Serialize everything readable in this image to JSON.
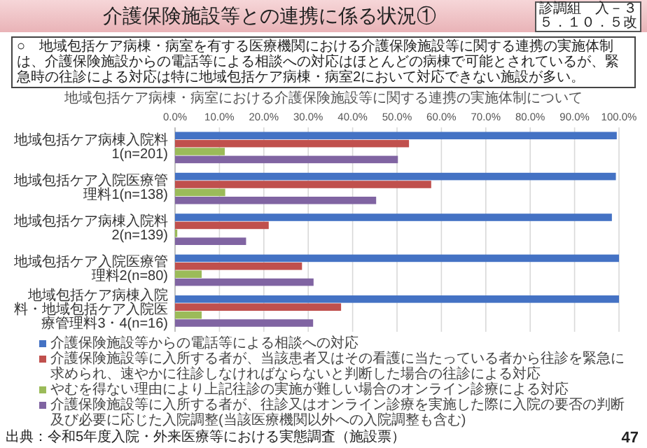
{
  "chart_data": {
    "type": "bar",
    "orientation": "horizontal",
    "title": "介護保険施設等との連携に係る状況①",
    "subtitle": "地域包括ケア病棟・病室における介護保険施設等に関する連携の実施体制について",
    "categories": [
      "地域包括ケア病棟入院料1(n=201)",
      "地域包括ケア入院医療管理料1(n=138)",
      "地域包括ケア病棟入院料2(n=139)",
      "地域包括ケア入院医療管理料2(n=80)",
      "地域包括ケア病棟入院料・地域包括ケア入院医療管理料3・4(n=16)"
    ],
    "series": [
      {
        "name": "介護保険施設等からの電話等による相談への対応",
        "color": "#4472c4",
        "values": [
          99.5,
          99.3,
          98.4,
          100,
          100
        ]
      },
      {
        "name": "介護保険施設等に入所する者が、当該患者又はその看護に当たっている者から往診を緊急に求められ、速やかに往診しなければならないと判断した場合の往診による対応",
        "color": "#c0504d",
        "values": [
          52.7,
          57.7,
          21.1,
          28.6,
          37.4
        ]
      },
      {
        "name": "やむを得ない理由により上記往診の実施が難しい場合のオンライン診療による対応",
        "color": "#9bbb59",
        "values": [
          11.2,
          11.3,
          0.5,
          6.0,
          6.0
        ]
      },
      {
        "name": "介護保険施設等に入所する者が、往診又はオンライン診療を実施した際に入院の要否の判断及び必要に応じた入院調整(当該医療機関以外への入院調整も含む)",
        "color": "#8064a2",
        "values": [
          50.2,
          45.3,
          16.0,
          31.2,
          31.1
        ]
      }
    ],
    "xlim": [
      0,
      100
    ],
    "xticks": [
      {
        "value": 0,
        "label": "0.0%"
      },
      {
        "value": 10,
        "label": "10.0%"
      },
      {
        "value": 20,
        "label": "20.0%"
      },
      {
        "value": 30,
        "label": "30.0%"
      },
      {
        "value": 40,
        "label": "40.0%"
      },
      {
        "value": 50,
        "label": "50.0%"
      },
      {
        "value": 60,
        "label": "60.0%"
      },
      {
        "value": 70,
        "label": "70.0%"
      },
      {
        "value": 80,
        "label": "80.0%"
      },
      {
        "value": 90,
        "label": "90.0%"
      },
      {
        "value": 100,
        "label": "100.0%"
      }
    ],
    "grid": "x",
    "legend": "bottom",
    "annotations": [
      "診調組　入－３",
      "５．１０．５改",
      "○　地域包括ケア病棟・病室を有する医療機関における介護保険施設等に関する連携の実施体制は、介護保険施設からの電話等による相談への対応はほとんどの病棟で可能とされているが、緊急時の往診による対応は特に地域包括ケア病棟・病室2において対応できない施設が多い。",
      "出典：令和5年度入院・外来医療等における実態調査（施設票）",
      "47"
    ]
  }
}
